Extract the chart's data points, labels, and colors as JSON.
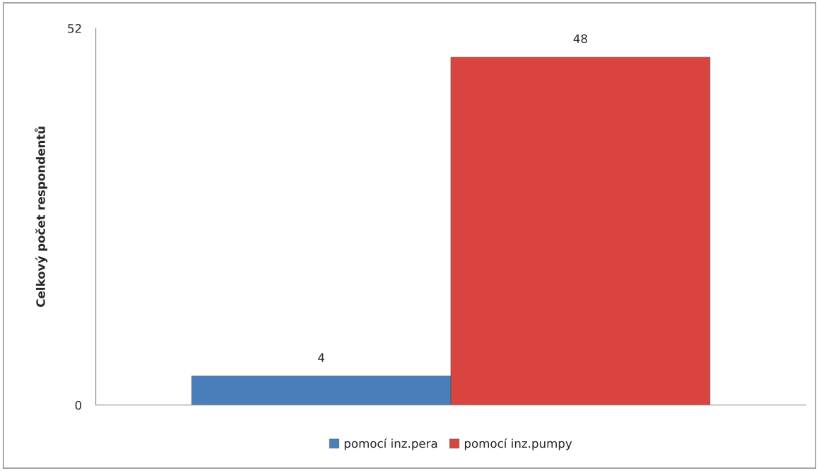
{
  "chart_data": {
    "type": "bar",
    "ylabel": "Celkový počet respondentů",
    "categories": [
      null
    ],
    "series": [
      {
        "name": "pomocí inz.pera",
        "color": "#4a7ebb",
        "values": [
          4
        ]
      },
      {
        "name": "pomocí inz.pumpy",
        "color": "#d9443f",
        "values": [
          48
        ]
      }
    ],
    "ylim": [
      0,
      52
    ],
    "yticks": [
      0,
      52
    ],
    "data_labels": true,
    "legend": "bottom",
    "grid": false
  }
}
